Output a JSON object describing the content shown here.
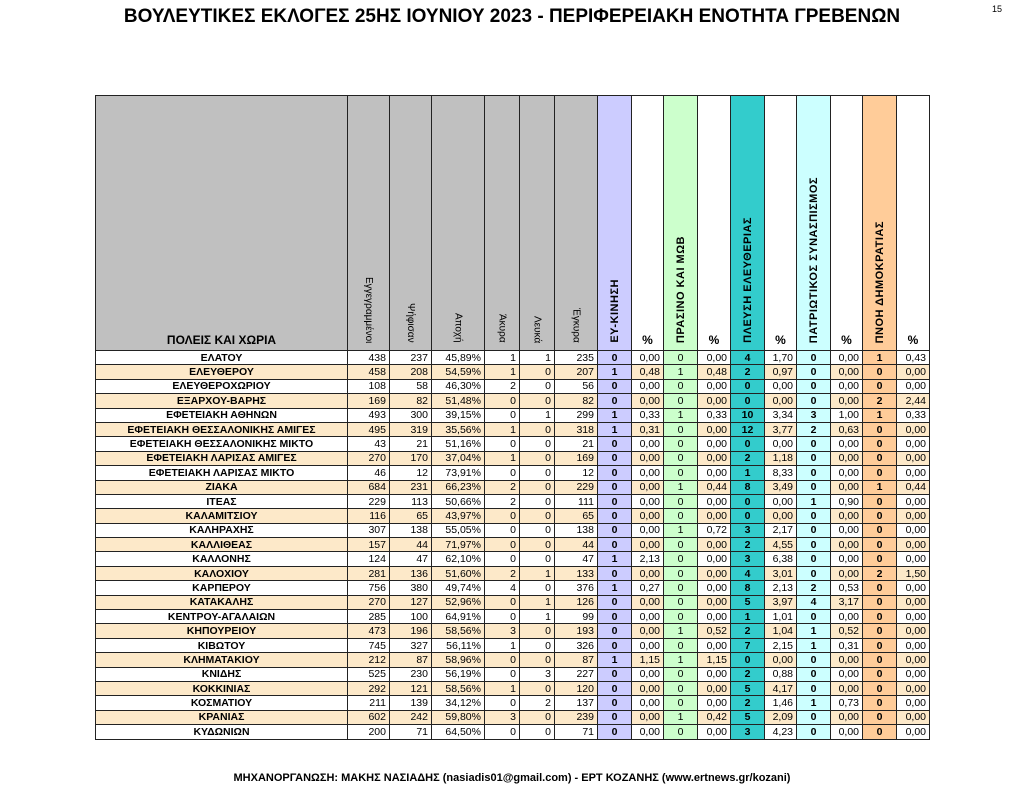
{
  "title": "ΒΟΥΛΕΥΤΙΚΕΣ ΕΚΛΟΓΕΣ 25ΗΣ ΙΟΥΝΙΟΥ 2023 - ΠΕΡΙΦΕΡΕΙΑΚΗ ΕΝΟΤΗΤΑ ΓΡΕΒΕΝΩΝ",
  "page_number": "15",
  "footer": "ΜΗΧΑΝΟΡΓΑΝΩΣΗ: ΜΑΚΗΣ ΝΑΣΙΑΔΗΣ (nasiadis01@gmail.com) - ΕΡΤ ΚΟΖΑΝΗΣ (www.ertnews.gr/kozani)",
  "colors": {
    "header": "#c0c0c0",
    "stripe": "#fde9c9",
    "ey_kinisi": "#ccccff",
    "prasino": "#ccffcc",
    "plefsi": "#33cccc",
    "patriotikos": "#ccffff",
    "pnoi": "#ffcc99"
  },
  "headers": {
    "name": "ΠΟΛΕΙΣ ΚΑΙ ΧΩΡΙΑ",
    "registered": "Εγγεγραμμένοι",
    "voted": "Ψήφισαν",
    "abstention": "Αποχή",
    "invalid": "Άκυρα",
    "blank": "Λευκά",
    "valid": "Έγκυρα",
    "pct": "%",
    "parties": [
      "ΕΥ-ΚΙΝΗΣΗ",
      "ΠΡΑΣΙΝΟ ΚΑΙ ΜΩΒ",
      "ΠΛΕΥΣΗ ΕΛΕΥΘΕΡΙΑΣ",
      "ΠΑΤΡΙΩΤΙΚΟΣ ΣΥΝΑΣΠΙΣΜΟΣ",
      "ΠΝΟΗ ΔΗΜΟΚΡΑΤΙΑΣ"
    ]
  },
  "rows": [
    [
      "ΕΛΑΤΟΥ",
      "438",
      "237",
      "45,89%",
      "1",
      "1",
      "235",
      "0",
      "0,00",
      "0",
      "0,00",
      "4",
      "1,70",
      "0",
      "0,00",
      "1",
      "0,43"
    ],
    [
      "ΕΛΕΥΘΕΡΟΥ",
      "458",
      "208",
      "54,59%",
      "1",
      "0",
      "207",
      "1",
      "0,48",
      "1",
      "0,48",
      "2",
      "0,97",
      "0",
      "0,00",
      "0",
      "0,00"
    ],
    [
      "ΕΛΕΥΘΕΡΟΧΩΡΙΟΥ",
      "108",
      "58",
      "46,30%",
      "2",
      "0",
      "56",
      "0",
      "0,00",
      "0",
      "0,00",
      "0",
      "0,00",
      "0",
      "0,00",
      "0",
      "0,00"
    ],
    [
      "ΕΞΑΡΧΟΥ-ΒΑΡΗΣ",
      "169",
      "82",
      "51,48%",
      "0",
      "0",
      "82",
      "0",
      "0,00",
      "0",
      "0,00",
      "0",
      "0,00",
      "0",
      "0,00",
      "2",
      "2,44"
    ],
    [
      "ΕΦΕΤΕΙΑΚΗ ΑΘΗΝΩΝ",
      "493",
      "300",
      "39,15%",
      "0",
      "1",
      "299",
      "1",
      "0,33",
      "1",
      "0,33",
      "10",
      "3,34",
      "3",
      "1,00",
      "1",
      "0,33"
    ],
    [
      "ΕΦΕΤΕΙΑΚΗ ΘΕΣΣΑΛΟΝΙΚΗΣ ΑΜΙΓΕΣ",
      "495",
      "319",
      "35,56%",
      "1",
      "0",
      "318",
      "1",
      "0,31",
      "0",
      "0,00",
      "12",
      "3,77",
      "2",
      "0,63",
      "0",
      "0,00"
    ],
    [
      "ΕΦΕΤΕΙΑΚΗ ΘΕΣΣΑΛΟΝΙΚΗΣ ΜΙΚΤΟ",
      "43",
      "21",
      "51,16%",
      "0",
      "0",
      "21",
      "0",
      "0,00",
      "0",
      "0,00",
      "0",
      "0,00",
      "0",
      "0,00",
      "0",
      "0,00"
    ],
    [
      "ΕΦΕΤΕΙΑΚΗ ΛΑΡΙΣΑΣ ΑΜΙΓΕΣ",
      "270",
      "170",
      "37,04%",
      "1",
      "0",
      "169",
      "0",
      "0,00",
      "0",
      "0,00",
      "2",
      "1,18",
      "0",
      "0,00",
      "0",
      "0,00"
    ],
    [
      "ΕΦΕΤΕΙΑΚΗ ΛΑΡΙΣΑΣ ΜΙΚΤΟ",
      "46",
      "12",
      "73,91%",
      "0",
      "0",
      "12",
      "0",
      "0,00",
      "0",
      "0,00",
      "1",
      "8,33",
      "0",
      "0,00",
      "0",
      "0,00"
    ],
    [
      "ΖΙΑΚΑ",
      "684",
      "231",
      "66,23%",
      "2",
      "0",
      "229",
      "0",
      "0,00",
      "1",
      "0,44",
      "8",
      "3,49",
      "0",
      "0,00",
      "1",
      "0,44"
    ],
    [
      "ΙΤΕΑΣ",
      "229",
      "113",
      "50,66%",
      "2",
      "0",
      "111",
      "0",
      "0,00",
      "0",
      "0,00",
      "0",
      "0,00",
      "1",
      "0,90",
      "0",
      "0,00"
    ],
    [
      "ΚΑΛΑΜΙΤΣΙΟΥ",
      "116",
      "65",
      "43,97%",
      "0",
      "0",
      "65",
      "0",
      "0,00",
      "0",
      "0,00",
      "0",
      "0,00",
      "0",
      "0,00",
      "0",
      "0,00"
    ],
    [
      "ΚΑΛΗΡΑΧΗΣ",
      "307",
      "138",
      "55,05%",
      "0",
      "0",
      "138",
      "0",
      "0,00",
      "1",
      "0,72",
      "3",
      "2,17",
      "0",
      "0,00",
      "0",
      "0,00"
    ],
    [
      "ΚΑΛΛΙΘΕΑΣ",
      "157",
      "44",
      "71,97%",
      "0",
      "0",
      "44",
      "0",
      "0,00",
      "0",
      "0,00",
      "2",
      "4,55",
      "0",
      "0,00",
      "0",
      "0,00"
    ],
    [
      "ΚΑΛΛΟΝΗΣ",
      "124",
      "47",
      "62,10%",
      "0",
      "0",
      "47",
      "1",
      "2,13",
      "0",
      "0,00",
      "3",
      "6,38",
      "0",
      "0,00",
      "0",
      "0,00"
    ],
    [
      "ΚΑΛΟΧΙΟΥ",
      "281",
      "136",
      "51,60%",
      "2",
      "1",
      "133",
      "0",
      "0,00",
      "0",
      "0,00",
      "4",
      "3,01",
      "0",
      "0,00",
      "2",
      "1,50"
    ],
    [
      "ΚΑΡΠΕΡΟΥ",
      "756",
      "380",
      "49,74%",
      "4",
      "0",
      "376",
      "1",
      "0,27",
      "0",
      "0,00",
      "8",
      "2,13",
      "2",
      "0,53",
      "0",
      "0,00"
    ],
    [
      "ΚΑΤΑΚΑΛΗΣ",
      "270",
      "127",
      "52,96%",
      "0",
      "1",
      "126",
      "0",
      "0,00",
      "0",
      "0,00",
      "5",
      "3,97",
      "4",
      "3,17",
      "0",
      "0,00"
    ],
    [
      "ΚΕΝΤΡΟΥ-ΑΓΑΛΑΙΩΝ",
      "285",
      "100",
      "64,91%",
      "0",
      "1",
      "99",
      "0",
      "0,00",
      "0",
      "0,00",
      "1",
      "1,01",
      "0",
      "0,00",
      "0",
      "0,00"
    ],
    [
      "ΚΗΠΟΥΡΕΙΟΥ",
      "473",
      "196",
      "58,56%",
      "3",
      "0",
      "193",
      "0",
      "0,00",
      "1",
      "0,52",
      "2",
      "1,04",
      "1",
      "0,52",
      "0",
      "0,00"
    ],
    [
      "ΚΙΒΩΤΟΥ",
      "745",
      "327",
      "56,11%",
      "1",
      "0",
      "326",
      "0",
      "0,00",
      "0",
      "0,00",
      "7",
      "2,15",
      "1",
      "0,31",
      "0",
      "0,00"
    ],
    [
      "ΚΛΗΜΑΤΑΚΙΟΥ",
      "212",
      "87",
      "58,96%",
      "0",
      "0",
      "87",
      "1",
      "1,15",
      "1",
      "1,15",
      "0",
      "0,00",
      "0",
      "0,00",
      "0",
      "0,00"
    ],
    [
      "ΚΝΙΔΗΣ",
      "525",
      "230",
      "56,19%",
      "0",
      "3",
      "227",
      "0",
      "0,00",
      "0",
      "0,00",
      "2",
      "0,88",
      "0",
      "0,00",
      "0",
      "0,00"
    ],
    [
      "ΚΟΚΚΙΝΙΑΣ",
      "292",
      "121",
      "58,56%",
      "1",
      "0",
      "120",
      "0",
      "0,00",
      "0",
      "0,00",
      "5",
      "4,17",
      "0",
      "0,00",
      "0",
      "0,00"
    ],
    [
      "ΚΟΣΜΑΤΙΟΥ",
      "211",
      "139",
      "34,12%",
      "0",
      "2",
      "137",
      "0",
      "0,00",
      "0",
      "0,00",
      "2",
      "1,46",
      "1",
      "0,73",
      "0",
      "0,00"
    ],
    [
      "ΚΡΑΝΙΑΣ",
      "602",
      "242",
      "59,80%",
      "3",
      "0",
      "239",
      "0",
      "0,00",
      "1",
      "0,42",
      "5",
      "2,09",
      "0",
      "0,00",
      "0",
      "0,00"
    ],
    [
      "ΚΥΔΩΝΙΩΝ",
      "200",
      "71",
      "64,50%",
      "0",
      "0",
      "71",
      "0",
      "0,00",
      "0",
      "0,00",
      "3",
      "4,23",
      "0",
      "0,00",
      "0",
      "0,00"
    ]
  ]
}
